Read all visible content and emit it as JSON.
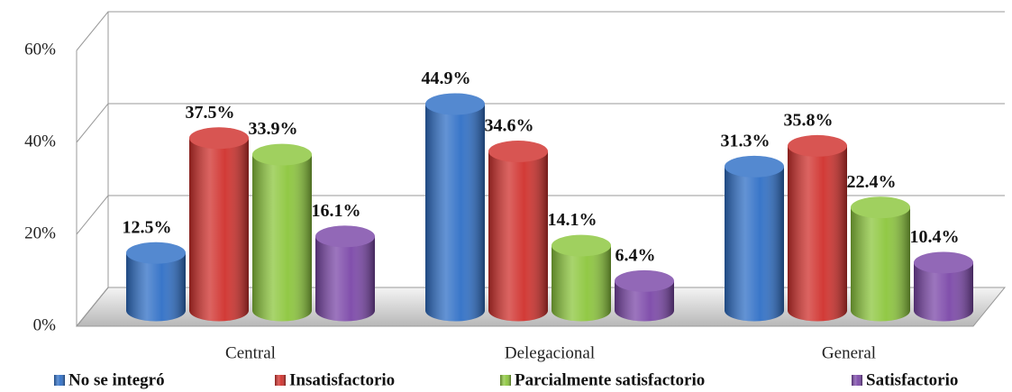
{
  "chart_data": {
    "type": "bar3d",
    "categories": [
      "Central",
      "Delegacional",
      "General"
    ],
    "series": [
      {
        "name": "No se integró",
        "color": "#2f6fc6",
        "values": [
          12.5,
          44.9,
          31.3
        ],
        "value_labels": [
          "12.5%",
          "44.9%",
          "31.3%"
        ]
      },
      {
        "name": "Insatisfactorio",
        "color": "#d0302c",
        "values": [
          37.5,
          34.6,
          35.8
        ],
        "value_labels": [
          "37.5%",
          "34.6%",
          "35.8%"
        ]
      },
      {
        "name": "Parcialmente satisfactorio",
        "color": "#8cc63c",
        "values": [
          33.9,
          14.1,
          22.4
        ],
        "value_labels": [
          "33.9%",
          "14.1%",
          "22.4%"
        ]
      },
      {
        "name": "Satisfactorio",
        "color": "#7b47a8",
        "values": [
          16.1,
          6.4,
          10.4
        ],
        "value_labels": [
          "16.1%",
          "6.4%",
          "10.4%"
        ]
      }
    ],
    "ylim": [
      0,
      60
    ],
    "yticks": [
      {
        "value": 0,
        "label": "0%"
      },
      {
        "value": 20,
        "label": "20%"
      },
      {
        "value": 40,
        "label": "40%"
      },
      {
        "value": 60,
        "label": "60%"
      }
    ],
    "grid": true,
    "legend": "bottom"
  }
}
